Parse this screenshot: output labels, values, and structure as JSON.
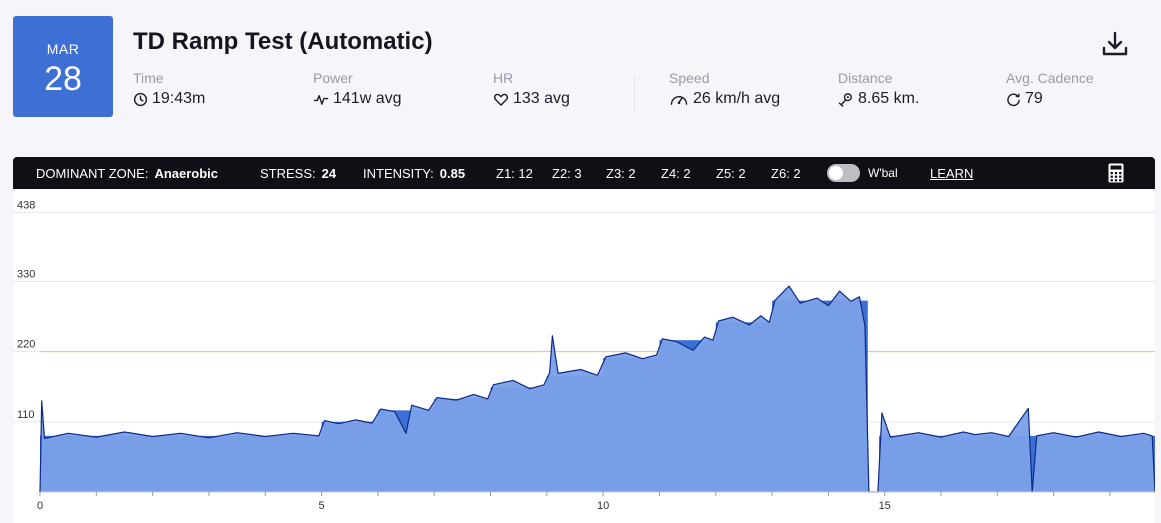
{
  "workout": {
    "month": "MAR",
    "day": "28",
    "title": "TD Ramp Test (Automatic)"
  },
  "stats": [
    {
      "label": "Time",
      "value": "19:43m",
      "icon": "clock-icon"
    },
    {
      "label": "Power",
      "value": "141w avg",
      "icon": "power-wave-icon"
    },
    {
      "label": "HR",
      "value": "133 avg",
      "icon": "heart-icon"
    },
    {
      "label": "Speed",
      "value": "26 km/h avg",
      "icon": "speedometer-icon"
    },
    {
      "label": "Distance",
      "value": "8.65 km.",
      "icon": "route-pin-icon"
    },
    {
      "label": "Avg. Cadence",
      "value": "79",
      "icon": "cadence-icon"
    }
  ],
  "summary_bar": {
    "dominant_zone_label": "DOMINANT ZONE:",
    "dominant_zone_value": "Anaerobic",
    "stress_label": "STRESS:",
    "stress_value": "24",
    "intensity_label": "INTENSITY:",
    "intensity_value": "0.85",
    "zones": [
      "Z1: 12",
      "Z2: 3",
      "Z3: 2",
      "Z4: 2",
      "Z5: 2",
      "Z6: 2"
    ],
    "wbal_label": "W'bal",
    "wbal_on": false,
    "learn_label": "LEARN"
  },
  "colors": {
    "accent": "#3d6fd4",
    "area_fill": "#7aa0e8",
    "step_fill": "#3a6fd6",
    "line": "#0d2a86",
    "ftp_line": "#f2c36b"
  },
  "chart_data": {
    "type": "area",
    "x_ticks": [
      "0",
      "5",
      "10",
      "15"
    ],
    "x_tick_values": [
      0,
      5,
      10,
      15
    ],
    "y_ticks": [
      "438",
      "330",
      "220",
      "110"
    ],
    "y_tick_values": [
      438,
      330,
      220,
      110
    ],
    "xlim": [
      0,
      19.8
    ],
    "ylim": [
      0,
      475
    ],
    "ftp_line": 220,
    "target_steps": [
      {
        "x0": 0,
        "x1": 5.0,
        "power": 88
      },
      {
        "x0": 5.0,
        "x1": 6.0,
        "power": 110
      },
      {
        "x0": 6.0,
        "x1": 7.0,
        "power": 128
      },
      {
        "x0": 7.0,
        "x1": 8.0,
        "power": 146
      },
      {
        "x0": 8.0,
        "x1": 9.0,
        "power": 164
      },
      {
        "x0": 9.0,
        "x1": 10.0,
        "power": 182
      },
      {
        "x0": 10.0,
        "x1": 11.0,
        "power": 210
      },
      {
        "x0": 11.0,
        "x1": 12.0,
        "power": 238
      },
      {
        "x0": 12.0,
        "x1": 13.0,
        "power": 266
      },
      {
        "x0": 13.0,
        "x1": 14.7,
        "power": 300
      },
      {
        "x0": 14.7,
        "x1": 14.9,
        "power": 0
      },
      {
        "x0": 14.9,
        "x1": 19.8,
        "power": 88
      }
    ],
    "actual_power": [
      {
        "x": 0.0,
        "y": 0
      },
      {
        "x": 0.03,
        "y": 143
      },
      {
        "x": 0.08,
        "y": 84
      },
      {
        "x": 0.5,
        "y": 92
      },
      {
        "x": 1.0,
        "y": 86
      },
      {
        "x": 1.5,
        "y": 94
      },
      {
        "x": 2.0,
        "y": 87
      },
      {
        "x": 2.5,
        "y": 92
      },
      {
        "x": 3.0,
        "y": 85
      },
      {
        "x": 3.5,
        "y": 93
      },
      {
        "x": 4.0,
        "y": 87
      },
      {
        "x": 4.5,
        "y": 92
      },
      {
        "x": 4.95,
        "y": 88
      },
      {
        "x": 5.05,
        "y": 112
      },
      {
        "x": 5.3,
        "y": 107
      },
      {
        "x": 5.6,
        "y": 113
      },
      {
        "x": 5.9,
        "y": 108
      },
      {
        "x": 6.05,
        "y": 130
      },
      {
        "x": 6.3,
        "y": 126
      },
      {
        "x": 6.5,
        "y": 92
      },
      {
        "x": 6.6,
        "y": 136
      },
      {
        "x": 6.9,
        "y": 128
      },
      {
        "x": 7.05,
        "y": 148
      },
      {
        "x": 7.4,
        "y": 144
      },
      {
        "x": 7.7,
        "y": 153
      },
      {
        "x": 7.95,
        "y": 146
      },
      {
        "x": 8.05,
        "y": 168
      },
      {
        "x": 8.4,
        "y": 175
      },
      {
        "x": 8.7,
        "y": 162
      },
      {
        "x": 8.95,
        "y": 168
      },
      {
        "x": 9.05,
        "y": 187
      },
      {
        "x": 9.1,
        "y": 245
      },
      {
        "x": 9.2,
        "y": 186
      },
      {
        "x": 9.6,
        "y": 192
      },
      {
        "x": 9.9,
        "y": 183
      },
      {
        "x": 10.05,
        "y": 212
      },
      {
        "x": 10.4,
        "y": 218
      },
      {
        "x": 10.7,
        "y": 209
      },
      {
        "x": 10.95,
        "y": 215
      },
      {
        "x": 11.05,
        "y": 240
      },
      {
        "x": 11.3,
        "y": 236
      },
      {
        "x": 11.6,
        "y": 222
      },
      {
        "x": 11.8,
        "y": 243
      },
      {
        "x": 11.95,
        "y": 238
      },
      {
        "x": 12.05,
        "y": 268
      },
      {
        "x": 12.3,
        "y": 274
      },
      {
        "x": 12.6,
        "y": 262
      },
      {
        "x": 12.8,
        "y": 276
      },
      {
        "x": 12.95,
        "y": 266
      },
      {
        "x": 13.05,
        "y": 300
      },
      {
        "x": 13.3,
        "y": 323
      },
      {
        "x": 13.5,
        "y": 296
      },
      {
        "x": 13.8,
        "y": 304
      },
      {
        "x": 14.0,
        "y": 292
      },
      {
        "x": 14.2,
        "y": 315
      },
      {
        "x": 14.4,
        "y": 299
      },
      {
        "x": 14.55,
        "y": 306
      },
      {
        "x": 14.65,
        "y": 260
      },
      {
        "x": 14.72,
        "y": 0
      },
      {
        "x": 14.88,
        "y": 0
      },
      {
        "x": 14.95,
        "y": 124
      },
      {
        "x": 15.1,
        "y": 86
      },
      {
        "x": 15.6,
        "y": 93
      },
      {
        "x": 16.0,
        "y": 86
      },
      {
        "x": 16.4,
        "y": 94
      },
      {
        "x": 16.6,
        "y": 90
      },
      {
        "x": 16.9,
        "y": 93
      },
      {
        "x": 17.2,
        "y": 87
      },
      {
        "x": 17.55,
        "y": 131
      },
      {
        "x": 17.62,
        "y": 0
      },
      {
        "x": 17.7,
        "y": 88
      },
      {
        "x": 18.0,
        "y": 93
      },
      {
        "x": 18.4,
        "y": 86
      },
      {
        "x": 18.8,
        "y": 94
      },
      {
        "x": 19.2,
        "y": 87
      },
      {
        "x": 19.6,
        "y": 92
      },
      {
        "x": 19.75,
        "y": 88
      },
      {
        "x": 19.8,
        "y": 0
      }
    ]
  }
}
